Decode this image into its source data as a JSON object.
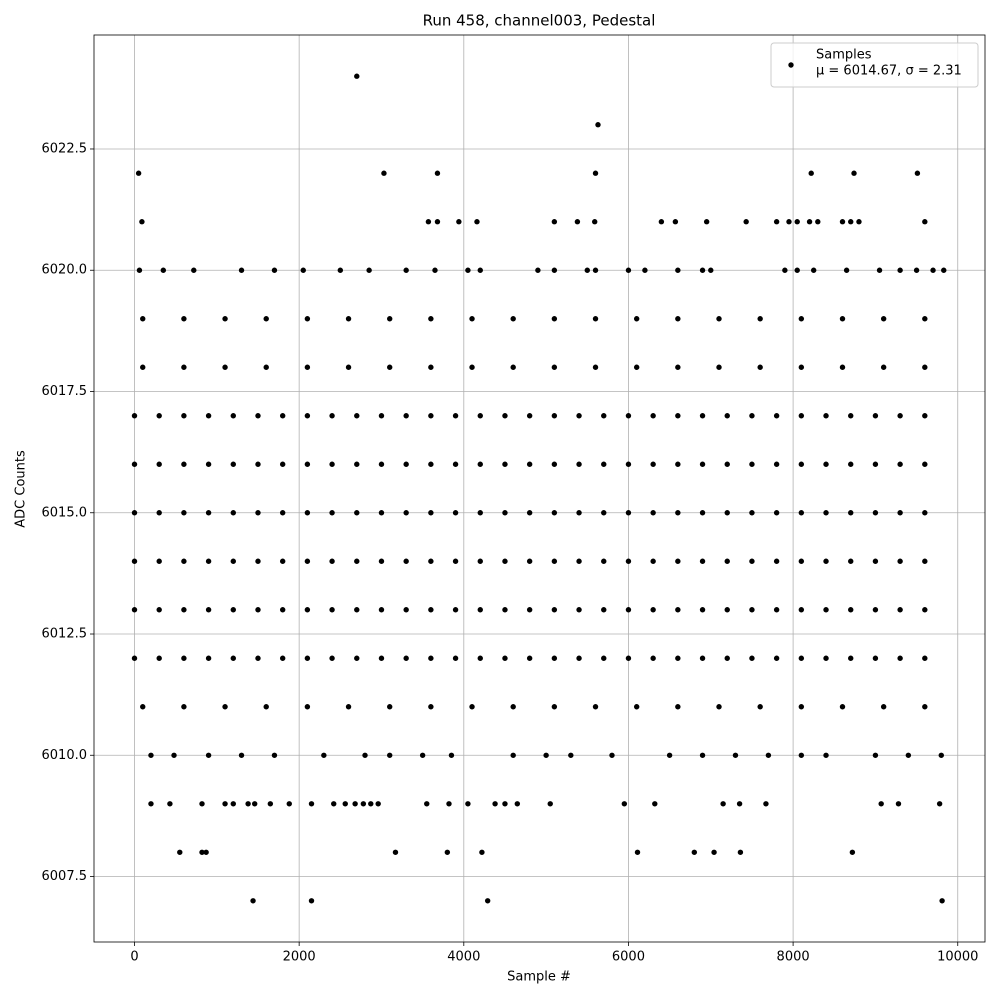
{
  "chart_data": {
    "type": "scatter",
    "title": "Run 458, channel003, Pedestal",
    "xlabel": "Sample #",
    "ylabel": "ADC Counts",
    "xlim": [
      -492,
      10331
    ],
    "xticks": [
      0,
      2000,
      4000,
      6000,
      8000,
      10000
    ],
    "ylim": [
      6006.15,
      6024.85
    ],
    "yticks": [
      6007.5,
      {
        "value": 6010,
        "label": "6010.0"
      },
      6012.5,
      {
        "value": 6015,
        "label": "6015.0"
      },
      6017.5,
      {
        "value": 6020,
        "label": "6020.0"
      },
      6022.5
    ],
    "grid": true,
    "legend": "upper right",
    "legend_note": "μ = 6014.67, σ = 2.31",
    "series": [
      {
        "name": "Samples",
        "color": "#000000",
        "x": [
          0,
          300,
          600,
          900,
          1200,
          1500,
          1800,
          2100,
          2400,
          2700,
          3000,
          3300,
          3600,
          3900,
          4200,
          4500,
          4800,
          5100,
          5400,
          5700,
          6000,
          6300,
          6600,
          6900,
          7200,
          7500,
          7800,
          8100,
          8400,
          8700,
          9000,
          9300,
          9600,
          0,
          300,
          600,
          900,
          1200,
          1500,
          1800,
          2100,
          2400,
          2700,
          3000,
          3300,
          3600,
          3900,
          4200,
          4500,
          4800,
          5100,
          5400,
          5700,
          6000,
          6300,
          6600,
          6900,
          7200,
          7500,
          7800,
          8100,
          8400,
          8700,
          9000,
          9300,
          9600,
          0,
          300,
          600,
          900,
          1200,
          1500,
          1800,
          2100,
          2400,
          2700,
          3000,
          3300,
          3600,
          3900,
          4200,
          4500,
          4800,
          5100,
          5400,
          5700,
          6000,
          6300,
          6600,
          6900,
          7200,
          7500,
          7800,
          8100,
          8400,
          8700,
          9000,
          9300,
          9600,
          0,
          300,
          600,
          900,
          1200,
          1500,
          1800,
          2100,
          2400,
          2700,
          3000,
          3300,
          3600,
          3900,
          4200,
          4500,
          4800,
          5100,
          5400,
          5700,
          6000,
          6300,
          6600,
          6900,
          7200,
          7500,
          7800,
          8100,
          8400,
          8700,
          9000,
          9300,
          9600,
          0,
          300,
          600,
          900,
          1200,
          1500,
          1800,
          2100,
          2400,
          2700,
          3000,
          3300,
          3600,
          3900,
          4200,
          4500,
          4800,
          5100,
          5400,
          5700,
          6000,
          6300,
          6600,
          6900,
          7200,
          7500,
          7800,
          8100,
          8400,
          8700,
          9000,
          9300,
          9600,
          0,
          300,
          600,
          900,
          1200,
          1500,
          1800,
          2100,
          2400,
          2700,
          3000,
          3300,
          3600,
          3900,
          4200,
          4500,
          4800,
          5100,
          5400,
          5700,
          6000,
          6300,
          6600,
          6900,
          7200,
          7500,
          7800,
          8100,
          8400,
          8700,
          9000,
          9300,
          9600,
          100,
          600,
          1100,
          1600,
          2100,
          2600,
          3100,
          3600,
          4100,
          4600,
          5100,
          5600,
          6100,
          6600,
          7100,
          7600,
          8100,
          8600,
          9100,
          9600,
          100,
          600,
          1100,
          1600,
          2100,
          2600,
          3100,
          3600,
          4100,
          4600,
          5100,
          5600,
          6100,
          6600,
          7100,
          7600,
          8100,
          8600,
          9100,
          9600,
          100,
          600,
          1100,
          1600,
          2100,
          2600,
          3100,
          3600,
          4100,
          4600,
          5100,
          5600,
          6100,
          6600,
          7100,
          7600,
          8100,
          8600,
          9100,
          9600,
          200,
          480,
          900,
          1300,
          1700,
          2300,
          2800,
          3100,
          3500,
          3850,
          4600,
          5000,
          5300,
          5800,
          6500,
          6900,
          7300,
          7700,
          8100,
          8400,
          9000,
          9400,
          9800,
          60,
          350,
          720,
          1300,
          1700,
          2050,
          2500,
          2850,
          3300,
          3650,
          4050,
          4200,
          4900,
          5100,
          5500,
          5600,
          6000,
          6200,
          6600,
          6900,
          7000,
          7900,
          8050,
          8250,
          8650,
          9050,
          9300,
          9500,
          9700,
          9830,
          200,
          430,
          820,
          1100,
          1200,
          1380,
          1460,
          1650,
          1880,
          2150,
          2420,
          2560,
          2680,
          2780,
          2870,
          2960,
          3550,
          3820,
          4050,
          4380,
          4500,
          4650,
          5050,
          5950,
          6320,
          7150,
          7350,
          7670,
          9070,
          9280,
          9780,
          550,
          820,
          870,
          3170,
          3800,
          4220,
          6110,
          6800,
          7040,
          7360,
          8720,
          1440,
          2150,
          4290,
          9810,
          90,
          3570,
          3680,
          3940,
          4160,
          5100,
          5380,
          5590,
          6400,
          6570,
          6950,
          7430,
          7800,
          7950,
          8050,
          8200,
          8300,
          8600,
          8700,
          8800,
          9600,
          50,
          3030,
          3680,
          5600,
          8220,
          8740,
          9510,
          5630,
          2700
        ],
        "values": [
          6012,
          6012,
          6012,
          6012,
          6012,
          6012,
          6012,
          6012,
          6012,
          6012,
          6012,
          6012,
          6012,
          6012,
          6012,
          6012,
          6012,
          6012,
          6012,
          6012,
          6012,
          6012,
          6012,
          6012,
          6012,
          6012,
          6012,
          6012,
          6012,
          6012,
          6012,
          6012,
          6012,
          6013,
          6013,
          6013,
          6013,
          6013,
          6013,
          6013,
          6013,
          6013,
          6013,
          6013,
          6013,
          6013,
          6013,
          6013,
          6013,
          6013,
          6013,
          6013,
          6013,
          6013,
          6013,
          6013,
          6013,
          6013,
          6013,
          6013,
          6013,
          6013,
          6013,
          6013,
          6013,
          6013,
          6014,
          6014,
          6014,
          6014,
          6014,
          6014,
          6014,
          6014,
          6014,
          6014,
          6014,
          6014,
          6014,
          6014,
          6014,
          6014,
          6014,
          6014,
          6014,
          6014,
          6014,
          6014,
          6014,
          6014,
          6014,
          6014,
          6014,
          6014,
          6014,
          6014,
          6014,
          6014,
          6014,
          6015,
          6015,
          6015,
          6015,
          6015,
          6015,
          6015,
          6015,
          6015,
          6015,
          6015,
          6015,
          6015,
          6015,
          6015,
          6015,
          6015,
          6015,
          6015,
          6015,
          6015,
          6015,
          6015,
          6015,
          6015,
          6015,
          6015,
          6015,
          6015,
          6015,
          6015,
          6015,
          6015,
          6016,
          6016,
          6016,
          6016,
          6016,
          6016,
          6016,
          6016,
          6016,
          6016,
          6016,
          6016,
          6016,
          6016,
          6016,
          6016,
          6016,
          6016,
          6016,
          6016,
          6016,
          6016,
          6016,
          6016,
          6016,
          6016,
          6016,
          6016,
          6016,
          6016,
          6016,
          6016,
          6016,
          6017,
          6017,
          6017,
          6017,
          6017,
          6017,
          6017,
          6017,
          6017,
          6017,
          6017,
          6017,
          6017,
          6017,
          6017,
          6017,
          6017,
          6017,
          6017,
          6017,
          6017,
          6017,
          6017,
          6017,
          6017,
          6017,
          6017,
          6017,
          6017,
          6017,
          6017,
          6017,
          6017,
          6011,
          6011,
          6011,
          6011,
          6011,
          6011,
          6011,
          6011,
          6011,
          6011,
          6011,
          6011,
          6011,
          6011,
          6011,
          6011,
          6011,
          6011,
          6011,
          6011,
          6018,
          6018,
          6018,
          6018,
          6018,
          6018,
          6018,
          6018,
          6018,
          6018,
          6018,
          6018,
          6018,
          6018,
          6018,
          6018,
          6018,
          6018,
          6018,
          6018,
          6019,
          6019,
          6019,
          6019,
          6019,
          6019,
          6019,
          6019,
          6019,
          6019,
          6019,
          6019,
          6019,
          6019,
          6019,
          6019,
          6019,
          6019,
          6019,
          6019,
          6010,
          6010,
          6010,
          6010,
          6010,
          6010,
          6010,
          6010,
          6010,
          6010,
          6010,
          6010,
          6010,
          6010,
          6010,
          6010,
          6010,
          6010,
          6010,
          6010,
          6010,
          6010,
          6010,
          6020,
          6020,
          6020,
          6020,
          6020,
          6020,
          6020,
          6020,
          6020,
          6020,
          6020,
          6020,
          6020,
          6020,
          6020,
          6020,
          6020,
          6020,
          6020,
          6020,
          6020,
          6020,
          6020,
          6020,
          6020,
          6020,
          6020,
          6020,
          6020,
          6020,
          6009,
          6009,
          6009,
          6009,
          6009,
          6009,
          6009,
          6009,
          6009,
          6009,
          6009,
          6009,
          6009,
          6009,
          6009,
          6009,
          6009,
          6009,
          6009,
          6009,
          6009,
          6009,
          6009,
          6009,
          6009,
          6009,
          6009,
          6009,
          6009,
          6009,
          6009,
          6008,
          6008,
          6008,
          6008,
          6008,
          6008,
          6008,
          6008,
          6008,
          6008,
          6008,
          6007,
          6007,
          6007,
          6007,
          6021,
          6021,
          6021,
          6021,
          6021,
          6021,
          6021,
          6021,
          6021,
          6021,
          6021,
          6021,
          6021,
          6021,
          6021,
          6021,
          6021,
          6021,
          6021,
          6021,
          6021,
          6022,
          6022,
          6022,
          6022,
          6022,
          6022,
          6022,
          6023,
          6024
        ]
      }
    ]
  }
}
